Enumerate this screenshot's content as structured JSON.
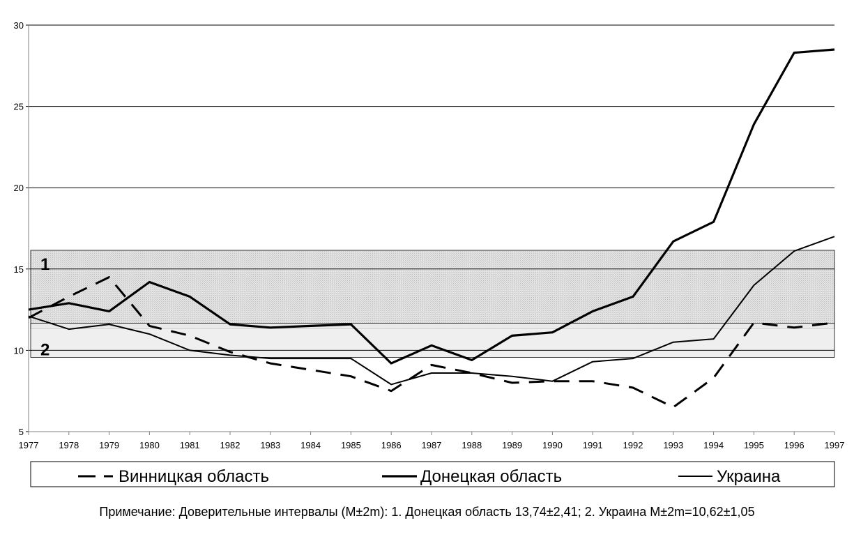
{
  "chart_data": {
    "type": "line",
    "x": [
      "1977",
      "1978",
      "1979",
      "1980",
      "1981",
      "1982",
      "1983",
      "1984",
      "1985",
      "1986",
      "1987",
      "1988",
      "1989",
      "1990",
      "1991",
      "1992",
      "1993",
      "1994",
      "1995",
      "1996",
      "1997"
    ],
    "ylim": [
      5,
      30
    ],
    "yticks": [
      "5",
      "10",
      "15",
      "20",
      "25",
      "30"
    ],
    "grid": true,
    "series": [
      {
        "name": "Винницкая область",
        "style": "dashed",
        "color": "#000000",
        "values": [
          12.0,
          13.3,
          14.5,
          11.5,
          10.9,
          9.9,
          9.2,
          8.8,
          8.4,
          7.5,
          9.1,
          8.6,
          8.0,
          8.1,
          8.1,
          7.7,
          6.5,
          8.3,
          11.7,
          11.4,
          11.7
        ]
      },
      {
        "name": "Донецкая область",
        "style": "thick",
        "color": "#000000",
        "values": [
          12.5,
          12.9,
          12.4,
          14.2,
          13.3,
          11.6,
          11.4,
          11.5,
          11.6,
          9.2,
          10.3,
          9.4,
          10.9,
          11.1,
          12.4,
          13.3,
          16.7,
          17.9,
          23.9,
          28.3,
          28.5
        ]
      },
      {
        "name": "Украина",
        "style": "thin",
        "color": "#000000",
        "values": [
          12.1,
          11.3,
          11.6,
          11.0,
          10.0,
          9.7,
          9.5,
          9.5,
          9.5,
          7.9,
          8.6,
          8.6,
          8.4,
          8.1,
          9.3,
          9.5,
          10.5,
          10.7,
          14.0,
          16.1,
          17.0
        ]
      }
    ],
    "bands": [
      {
        "label": "1",
        "low": 11.33,
        "high": 16.15
      },
      {
        "label": "2",
        "low": 9.57,
        "high": 11.67
      }
    ],
    "legend": {
      "position": "bottom"
    },
    "note": "Примечание: Доверительные интервалы (M±2m): 1. Донецкая область 13,74±2,41; 2. Украина M±2m=10,62±1,05"
  }
}
